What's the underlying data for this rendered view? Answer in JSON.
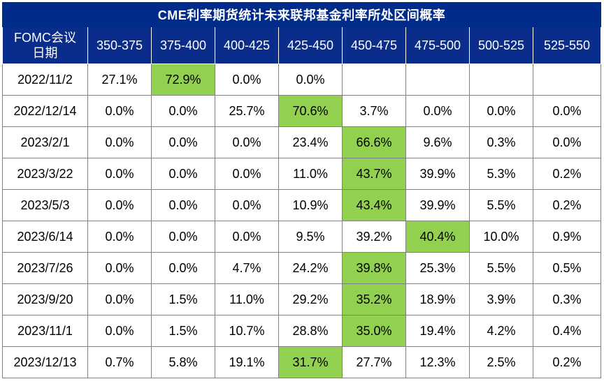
{
  "title": "CME利率期货统计未来联邦基金利率所处区间概率",
  "corner_header_line1": "FOMC会议",
  "corner_header_line2": "日期",
  "columns": [
    "350-375",
    "375-400",
    "400-425",
    "425-450",
    "450-475",
    "475-500",
    "500-525",
    "525-550"
  ],
  "highlight_color": "#92d050",
  "header_color": "#0a2d8c",
  "rows": [
    {
      "date": "2022/11/2",
      "values": [
        "27.1%",
        "72.9%",
        "0.0%",
        "0.0%",
        "",
        "",
        "",
        ""
      ],
      "highlight": 1
    },
    {
      "date": "2022/12/14",
      "values": [
        "0.0%",
        "0.0%",
        "25.7%",
        "70.6%",
        "3.7%",
        "0.0%",
        "0.0%",
        "0.0%"
      ],
      "highlight": 3
    },
    {
      "date": "2023/2/1",
      "values": [
        "0.0%",
        "0.0%",
        "0.0%",
        "23.4%",
        "66.6%",
        "9.6%",
        "0.3%",
        "0.0%"
      ],
      "highlight": 4
    },
    {
      "date": "2023/3/22",
      "values": [
        "0.0%",
        "0.0%",
        "0.0%",
        "11.0%",
        "43.7%",
        "39.9%",
        "5.3%",
        "0.2%"
      ],
      "highlight": 4
    },
    {
      "date": "2023/5/3",
      "values": [
        "0.0%",
        "0.0%",
        "0.0%",
        "10.9%",
        "43.4%",
        "39.9%",
        "5.5%",
        "0.2%"
      ],
      "highlight": 4
    },
    {
      "date": "2023/6/14",
      "values": [
        "0.0%",
        "0.0%",
        "0.0%",
        "9.5%",
        "39.2%",
        "40.4%",
        "10.0%",
        "0.9%"
      ],
      "highlight": 5
    },
    {
      "date": "2023/7/26",
      "values": [
        "0.0%",
        "0.0%",
        "4.7%",
        "24.2%",
        "39.8%",
        "25.3%",
        "5.5%",
        "0.5%"
      ],
      "highlight": 4
    },
    {
      "date": "2023/9/20",
      "values": [
        "0.0%",
        "1.5%",
        "11.0%",
        "29.2%",
        "35.2%",
        "18.9%",
        "3.9%",
        "0.3%"
      ],
      "highlight": 4
    },
    {
      "date": "2023/11/1",
      "values": [
        "0.0%",
        "1.5%",
        "10.7%",
        "28.8%",
        "35.0%",
        "19.4%",
        "4.2%",
        "0.4%"
      ],
      "highlight": 4
    },
    {
      "date": "2023/12/13",
      "values": [
        "0.7%",
        "5.8%",
        "19.1%",
        "31.7%",
        "27.7%",
        "12.3%",
        "2.5%",
        "0.2%"
      ],
      "highlight": 3
    }
  ]
}
